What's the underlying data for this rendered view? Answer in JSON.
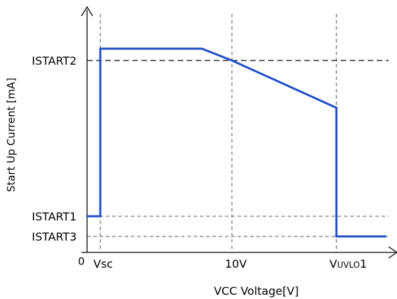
{
  "chart_data": {
    "type": "line",
    "title": "",
    "xlabel": "VCC Voltage[V]",
    "ylabel": "Start Up Current [mA]",
    "origin_label": "0",
    "x_markers": [
      {
        "name": "vsc",
        "text": "Vsc",
        "sub": ""
      },
      {
        "name": "10v",
        "text": "10V",
        "sub": ""
      },
      {
        "name": "vuvlo1",
        "text": "V",
        "sub": "UVLO",
        "tail": "1"
      }
    ],
    "y_markers": [
      {
        "name": "istart2",
        "text": "ISTART2"
      },
      {
        "name": "istart1",
        "text": "ISTART1"
      },
      {
        "name": "istart3",
        "text": "ISTART3"
      }
    ],
    "series": [
      {
        "color": "#1f4fc8",
        "points": [
          [
            "0",
            "ISTART1"
          ],
          [
            "Vsc",
            "ISTART1"
          ],
          [
            "Vsc",
            "above ISTART2"
          ],
          [
            "between Vsc and 10V",
            "above ISTART2"
          ],
          [
            "10V",
            "ISTART2"
          ],
          [
            "VUVLO1",
            "below ISTART2"
          ],
          [
            "VUVLO1",
            "ISTART3"
          ],
          [
            "beyond VUVLO1",
            "ISTART3"
          ]
        ]
      }
    ],
    "axis_color": "#000000",
    "guide_color": "#777777",
    "grid": false
  }
}
